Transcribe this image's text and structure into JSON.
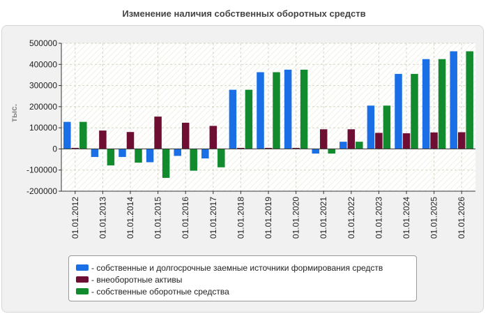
{
  "chart_data": {
    "type": "bar",
    "title": "Изменение наличия собственных оборотных средств",
    "ylabel": "тыс.",
    "xlabel": "",
    "ylim": [
      -200000,
      500000
    ],
    "yticks": [
      500000,
      400000,
      300000,
      200000,
      100000,
      0,
      -100000,
      -200000
    ],
    "ytick_labels": [
      "500000",
      "400000",
      "300000",
      "200000",
      "100000",
      "0",
      "-100000",
      "-200000"
    ],
    "grid": true,
    "legend_position": "bottom",
    "categories": [
      "01.01.2012",
      "01.01.2013",
      "01.01.2014",
      "01.01.2015",
      "01.01.2016",
      "01.01.2017",
      "01.01.2018",
      "01.01.2019",
      "01.01.2020",
      "01.01.2021",
      "01.01.2022",
      "01.01.2023",
      "01.01.2024",
      "01.01.2025",
      "01.01.2026"
    ],
    "series": [
      {
        "name": "собственные и долгосрочные заемные источники формирования средств",
        "color": "#1a6ee6",
        "values": [
          128000,
          -38000,
          -38000,
          -63000,
          -33000,
          -45000,
          280000,
          363000,
          375000,
          -22000,
          34000,
          205000,
          355000,
          425000,
          462000
        ]
      },
      {
        "name": "внеоборотные активы",
        "color": "#6e0e33",
        "values": [
          5000,
          87000,
          80000,
          153000,
          124000,
          109000,
          5000,
          5000,
          5000,
          93000,
          93000,
          76000,
          74000,
          78000,
          79000
        ]
      },
      {
        "name": "собственные оборотные средства",
        "color": "#128a2e",
        "values": [
          128000,
          -78000,
          -65000,
          -137000,
          -103000,
          -87000,
          280000,
          363000,
          375000,
          -22000,
          34000,
          205000,
          355000,
          425000,
          462000
        ]
      }
    ]
  }
}
